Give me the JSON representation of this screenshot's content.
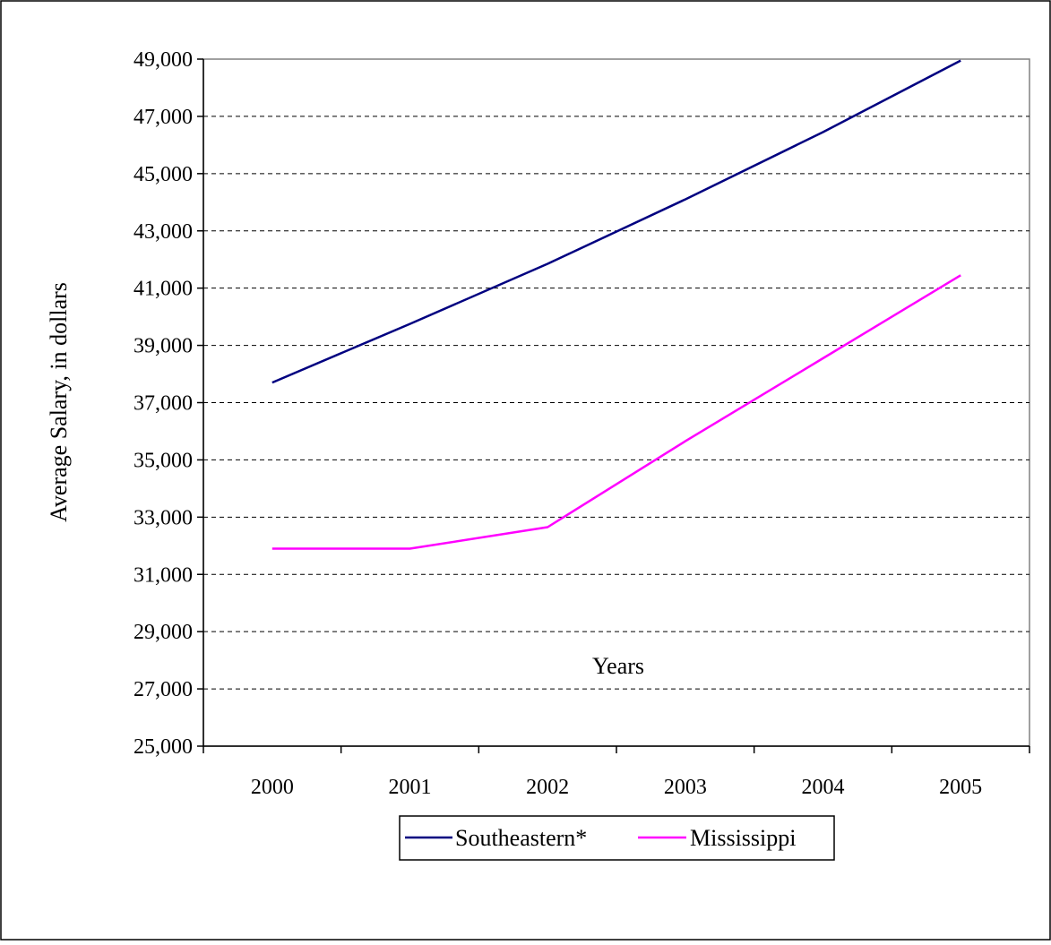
{
  "chart_data": {
    "type": "line",
    "title": "",
    "xlabel": "Years",
    "ylabel": "Average Salary, in dollars",
    "categories": [
      "2000",
      "2001",
      "2002",
      "2003",
      "2004",
      "2005"
    ],
    "y_ticks": [
      "25,000",
      "27,000",
      "29,000",
      "31,000",
      "33,000",
      "35,000",
      "37,000",
      "39,000",
      "41,000",
      "43,000",
      "45,000",
      "47,000",
      "49,000"
    ],
    "ylim": [
      25000,
      49000
    ],
    "grid": "horizontal dashed",
    "legend_position": "bottom",
    "series": [
      {
        "name": "Southeastern*",
        "color": "#000080",
        "values": [
          37700,
          39750,
          41850,
          44100,
          46450,
          48950
        ]
      },
      {
        "name": "Mississippi",
        "color": "#ff00ff",
        "values": [
          31900,
          31900,
          32650,
          35650,
          38550,
          41450
        ]
      }
    ]
  }
}
